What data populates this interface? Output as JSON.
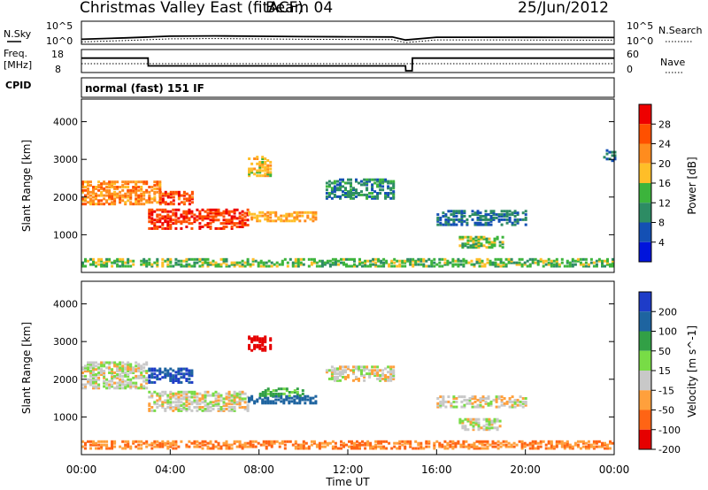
{
  "header": {
    "title": "Christmas Valley East (fitACF)",
    "beam": "Beam 04",
    "date": "25/Jun/2012",
    "cpid_label": "CPID",
    "cpid_value": "normal (fast) 151 IF"
  },
  "noise_panel": {
    "left_label": "N.Sky",
    "right_label": "N.Search",
    "left_ticks": [
      "10^5",
      "10^0"
    ],
    "right_ticks": [
      "10^5",
      "10^0"
    ]
  },
  "freq_panel": {
    "left_label_1": "Freq.",
    "left_label_2": "[MHz]",
    "right_label": "Nave",
    "left_ticks": [
      "18",
      "8"
    ],
    "right_ticks": [
      "60",
      "0"
    ]
  },
  "time_axis": {
    "label": "Time UT",
    "ticks": [
      "00:00",
      "04:00",
      "08:00",
      "12:00",
      "16:00",
      "20:00",
      "00:00"
    ]
  },
  "range_axis": {
    "label": "Slant Range [km]",
    "ticks": [
      "4000",
      "3000",
      "2000",
      "1000"
    ]
  },
  "power_scale": {
    "label": "Power [dB]",
    "ticks": [
      "28",
      "24",
      "20",
      "16",
      "12",
      "8",
      "4"
    ],
    "colors": [
      "#ee0000",
      "#ff5000",
      "#ff8c1e",
      "#ffbe28",
      "#3cb43c",
      "#2d8c64",
      "#1450b4",
      "#0014dc"
    ]
  },
  "velocity_scale": {
    "label": "Velocity [m s^-1]",
    "ticks": [
      "200",
      "100",
      "50",
      "15",
      "-15",
      "-50",
      "-100",
      "-200"
    ],
    "colors": [
      "#1e3cc8",
      "#1e64a0",
      "#32a046",
      "#78dc46",
      "#c8c8c8",
      "#ffa03c",
      "#ff6414",
      "#e60000"
    ]
  },
  "chart_data": [
    {
      "type": "line",
      "title": "N.Sky / N.Search",
      "x": [
        0,
        2,
        4,
        6,
        8,
        10,
        12,
        14,
        14.6,
        16,
        18,
        20,
        24
      ],
      "series": [
        {
          "name": "N.Sky",
          "values": [
            8,
            20,
            60,
            70,
            55,
            45,
            40,
            35,
            5,
            30,
            30,
            28,
            25
          ]
        }
      ]
    },
    {
      "type": "line",
      "title": "Freq / Nave",
      "x": [
        0,
        3,
        3.01,
        14.6,
        14.61,
        14.9,
        14.91,
        24
      ],
      "series": [
        {
          "name": "Freq.",
          "values": [
            14.5,
            14.5,
            10.5,
            10.5,
            8,
            8,
            14.5,
            14.5
          ]
        }
      ]
    },
    {
      "type": "heatmap",
      "title": "Power [dB]",
      "xlim": [
        0,
        24
      ],
      "ylim": [
        0,
        4600
      ],
      "regions": [
        {
          "x": [
            0,
            3.5
          ],
          "range": [
            1850,
            2450
          ],
          "power": 20
        },
        {
          "x": [
            3.5,
            5
          ],
          "range": [
            1850,
            2200
          ],
          "power": 24
        },
        {
          "x": [
            3,
            7.5
          ],
          "range": [
            1200,
            1700
          ],
          "power": 26
        },
        {
          "x": [
            7.5,
            10.5
          ],
          "range": [
            1400,
            1650
          ],
          "power": 18
        },
        {
          "x": [
            7.5,
            8.5
          ],
          "range": [
            2600,
            3100
          ],
          "power": 16
        },
        {
          "x": [
            11,
            14
          ],
          "range": [
            2000,
            2500
          ],
          "power": 8
        },
        {
          "x": [
            16,
            20
          ],
          "range": [
            1300,
            1700
          ],
          "power": 6
        },
        {
          "x": [
            17,
            19
          ],
          "range": [
            700,
            1000
          ],
          "power": 12
        },
        {
          "x": [
            23.5,
            24
          ],
          "range": [
            3000,
            3300
          ],
          "power": 6
        },
        {
          "x": [
            0,
            24
          ],
          "range": [
            200,
            400
          ],
          "power": 12
        }
      ]
    },
    {
      "type": "heatmap",
      "title": "Velocity [m s^-1]",
      "xlim": [
        0,
        24
      ],
      "ylim": [
        0,
        4600
      ],
      "regions": [
        {
          "x": [
            0,
            3
          ],
          "range": [
            1800,
            2500
          ],
          "velocity": 0
        },
        {
          "x": [
            3,
            5
          ],
          "range": [
            1950,
            2350
          ],
          "velocity": 200
        },
        {
          "x": [
            3,
            7.5
          ],
          "range": [
            1200,
            1700
          ],
          "velocity": 0
        },
        {
          "x": [
            7.5,
            10.5
          ],
          "range": [
            1400,
            1600
          ],
          "velocity": 150
        },
        {
          "x": [
            8,
            10
          ],
          "range": [
            1600,
            1800
          ],
          "velocity": 60
        },
        {
          "x": [
            7.5,
            8.5
          ],
          "range": [
            2800,
            3200
          ],
          "velocity": -200
        },
        {
          "x": [
            11,
            14
          ],
          "range": [
            2000,
            2400
          ],
          "velocity": 0
        },
        {
          "x": [
            16,
            20
          ],
          "range": [
            1300,
            1600
          ],
          "velocity": 0
        },
        {
          "x": [
            17,
            19
          ],
          "range": [
            700,
            1000
          ],
          "velocity": 0
        },
        {
          "x": [
            0,
            24
          ],
          "range": [
            200,
            400
          ],
          "velocity": -50
        }
      ]
    }
  ]
}
